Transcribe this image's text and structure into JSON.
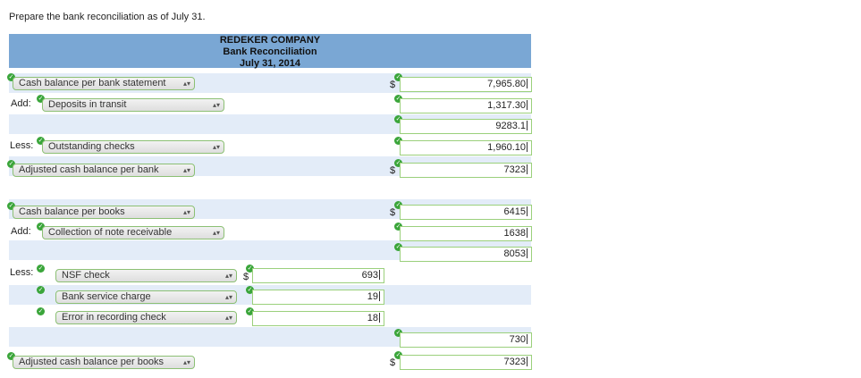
{
  "instruction": "Prepare the bank reconciliation as of July 31.",
  "header": {
    "company": "REDEKER COMPANY",
    "title": "Bank Reconciliation",
    "date": "July 31, 2014"
  },
  "prefixes": {
    "add": "Add:",
    "less": "Less:"
  },
  "currency_symbol": "$",
  "rows": {
    "bank_balance": {
      "label": "Cash balance per bank statement",
      "value": "7,965.80"
    },
    "deposits_in_transit": {
      "label": "Deposits in transit",
      "value": "1,317.30"
    },
    "bank_subtotal": {
      "value": "9283.1"
    },
    "outstanding_checks": {
      "label": "Outstanding checks",
      "value": "1,960.10"
    },
    "adjusted_bank": {
      "label": "Adjusted cash balance per bank",
      "value": "7323"
    },
    "book_balance": {
      "label": "Cash balance per books",
      "value": "6415"
    },
    "collection_note": {
      "label": "Collection of note receivable",
      "value": "1638"
    },
    "book_subtotal": {
      "value": "8053"
    },
    "nsf_check": {
      "label": "NSF check",
      "value": "693"
    },
    "service_charge": {
      "label": "Bank service charge",
      "value": "19"
    },
    "recording_error": {
      "label": "Error in recording check",
      "value": "18"
    },
    "less_total": {
      "value": "730"
    },
    "adjusted_books": {
      "label": "Adjusted cash balance per books",
      "value": "7323"
    }
  },
  "colors": {
    "header_bg": "#7aa7d4",
    "band_bg": "#e3ecf8",
    "check_green": "#3aa53a",
    "field_border": "#9bd07c"
  }
}
